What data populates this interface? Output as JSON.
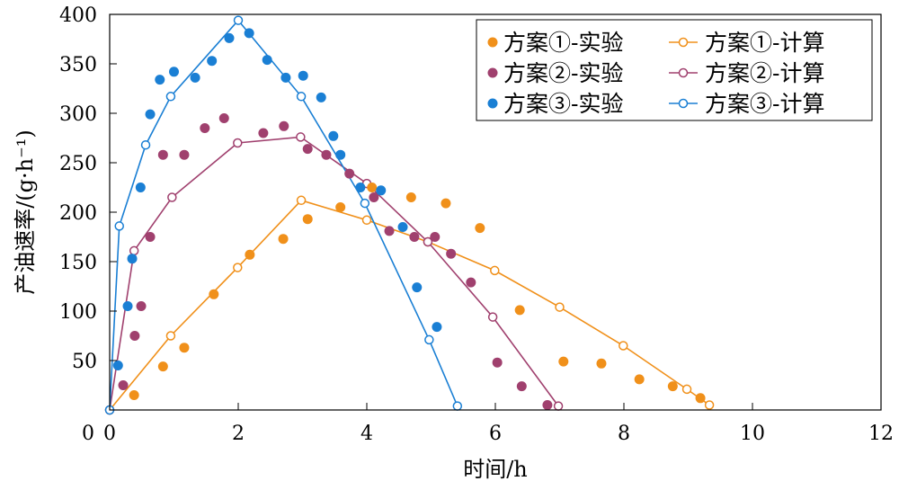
{
  "chart_data": {
    "type": "scatter",
    "title": "",
    "xlabel": "时间/h",
    "ylabel": "产油速率/(g·h⁻¹)",
    "xlim": [
      0,
      12
    ],
    "ylim": [
      0,
      400
    ],
    "xticks": [
      0,
      2,
      4,
      6,
      8,
      10,
      12
    ],
    "yticks": [
      50,
      100,
      150,
      200,
      250,
      300,
      350,
      400
    ],
    "grid": false,
    "legend_position": "top-right",
    "series": [
      {
        "name": "方案①-实验",
        "kind": "scatter",
        "color": "#f0901a",
        "x": [
          0.38,
          0.83,
          1.16,
          1.62,
          2.18,
          2.7,
          3.08,
          3.59,
          4.08,
          4.69,
          5.23,
          5.76,
          6.38,
          7.06,
          7.65,
          8.24,
          8.76,
          9.19
        ],
        "y": [
          15,
          44,
          63,
          117,
          157,
          173,
          193,
          205,
          225,
          215,
          209,
          184,
          101,
          49,
          47,
          31,
          24,
          12
        ]
      },
      {
        "name": "方案②-实验",
        "kind": "scatter",
        "color": "#a0406e",
        "x": [
          0.21,
          0.39,
          0.49,
          0.63,
          0.83,
          1.16,
          1.48,
          1.78,
          2.39,
          2.71,
          3.08,
          3.37,
          3.73,
          4.11,
          4.35,
          4.74,
          5.06,
          5.31,
          5.62,
          6.03,
          6.41,
          6.81
        ],
        "y": [
          25,
          75,
          105,
          175,
          258,
          258,
          285,
          295,
          280,
          287,
          264,
          258,
          239,
          215,
          181,
          175,
          175,
          158,
          129,
          48,
          24,
          5
        ]
      },
      {
        "name": "方案③-实验",
        "kind": "scatter",
        "color": "#1a7fd4",
        "x": [
          0.13,
          0.28,
          0.35,
          0.48,
          0.63,
          0.78,
          1.0,
          1.33,
          1.59,
          1.86,
          2.17,
          2.45,
          2.74,
          3.01,
          3.29,
          3.48,
          3.59,
          3.9,
          4.22,
          4.56,
          4.78,
          5.09
        ],
        "y": [
          45,
          105,
          153,
          225,
          299,
          334,
          342,
          336,
          353,
          376,
          381,
          354,
          336,
          338,
          316,
          277,
          258,
          225,
          222,
          185,
          124,
          84
        ]
      },
      {
        "name": "方案①-计算",
        "kind": "line",
        "color": "#f0901a",
        "x": [
          0,
          0.95,
          1.99,
          2.98,
          4.0,
          4.95,
          5.99,
          7.0,
          7.99,
          8.98,
          9.33
        ],
        "y": [
          0,
          75,
          144,
          212,
          192,
          170,
          141,
          104,
          65,
          21,
          5
        ]
      },
      {
        "name": "方案②-计算",
        "kind": "line",
        "color": "#a0406e",
        "x": [
          0,
          0.38,
          0.97,
          1.99,
          2.97,
          4.0,
          4.95,
          5.96,
          6.98
        ],
        "y": [
          0,
          161,
          215,
          270,
          276,
          229,
          170,
          94,
          4
        ]
      },
      {
        "name": "方案③-计算",
        "kind": "line",
        "color": "#1a7fd4",
        "x": [
          0,
          0.15,
          0.56,
          0.95,
          2.0,
          2.98,
          3.97,
          4.97,
          5.41
        ],
        "y": [
          0,
          186,
          268,
          317,
          394,
          317,
          209,
          71,
          4
        ]
      }
    ]
  }
}
